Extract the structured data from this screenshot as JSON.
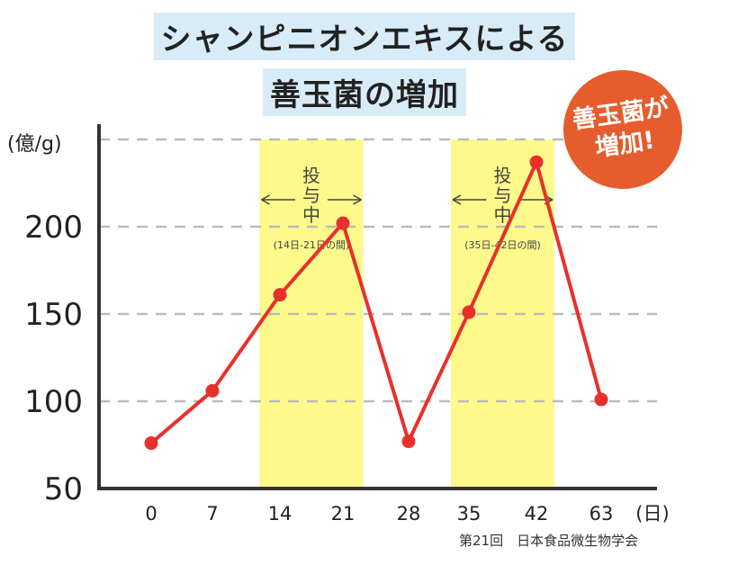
{
  "title": {
    "line1": "シャンピニオンエキスによる",
    "line2": "善玉菌の増加"
  },
  "badge": {
    "line1": "善玉菌が",
    "line2": "増加!"
  },
  "source": "第21回　日本食品微生物学会",
  "colors": {
    "line": "#e8302a",
    "highlight": "#fdf98b",
    "badge": "#e65c2d",
    "title_bg": "#d8ecf7",
    "grid": "#bbbbbb"
  },
  "chart_data": {
    "type": "line",
    "categories": [
      "0",
      "7",
      "14",
      "21",
      "28",
      "35",
      "42",
      "63"
    ],
    "values": [
      76,
      106,
      161,
      202,
      77,
      151,
      237,
      101
    ],
    "ylabel": "(億/g)",
    "xlabel": "(日)",
    "ylim": [
      50,
      250
    ],
    "yticks": [
      50,
      100,
      150,
      200
    ],
    "grid": true,
    "highlight_bands": [
      {
        "from": "14",
        "to": "21",
        "label_lines": [
          "投",
          "与",
          "中"
        ],
        "sublabel": "(14日-21日の間)"
      },
      {
        "from": "35",
        "to": "42",
        "label_lines": [
          "投",
          "与",
          "中"
        ],
        "sublabel": "(35日-42日の間)"
      }
    ]
  }
}
